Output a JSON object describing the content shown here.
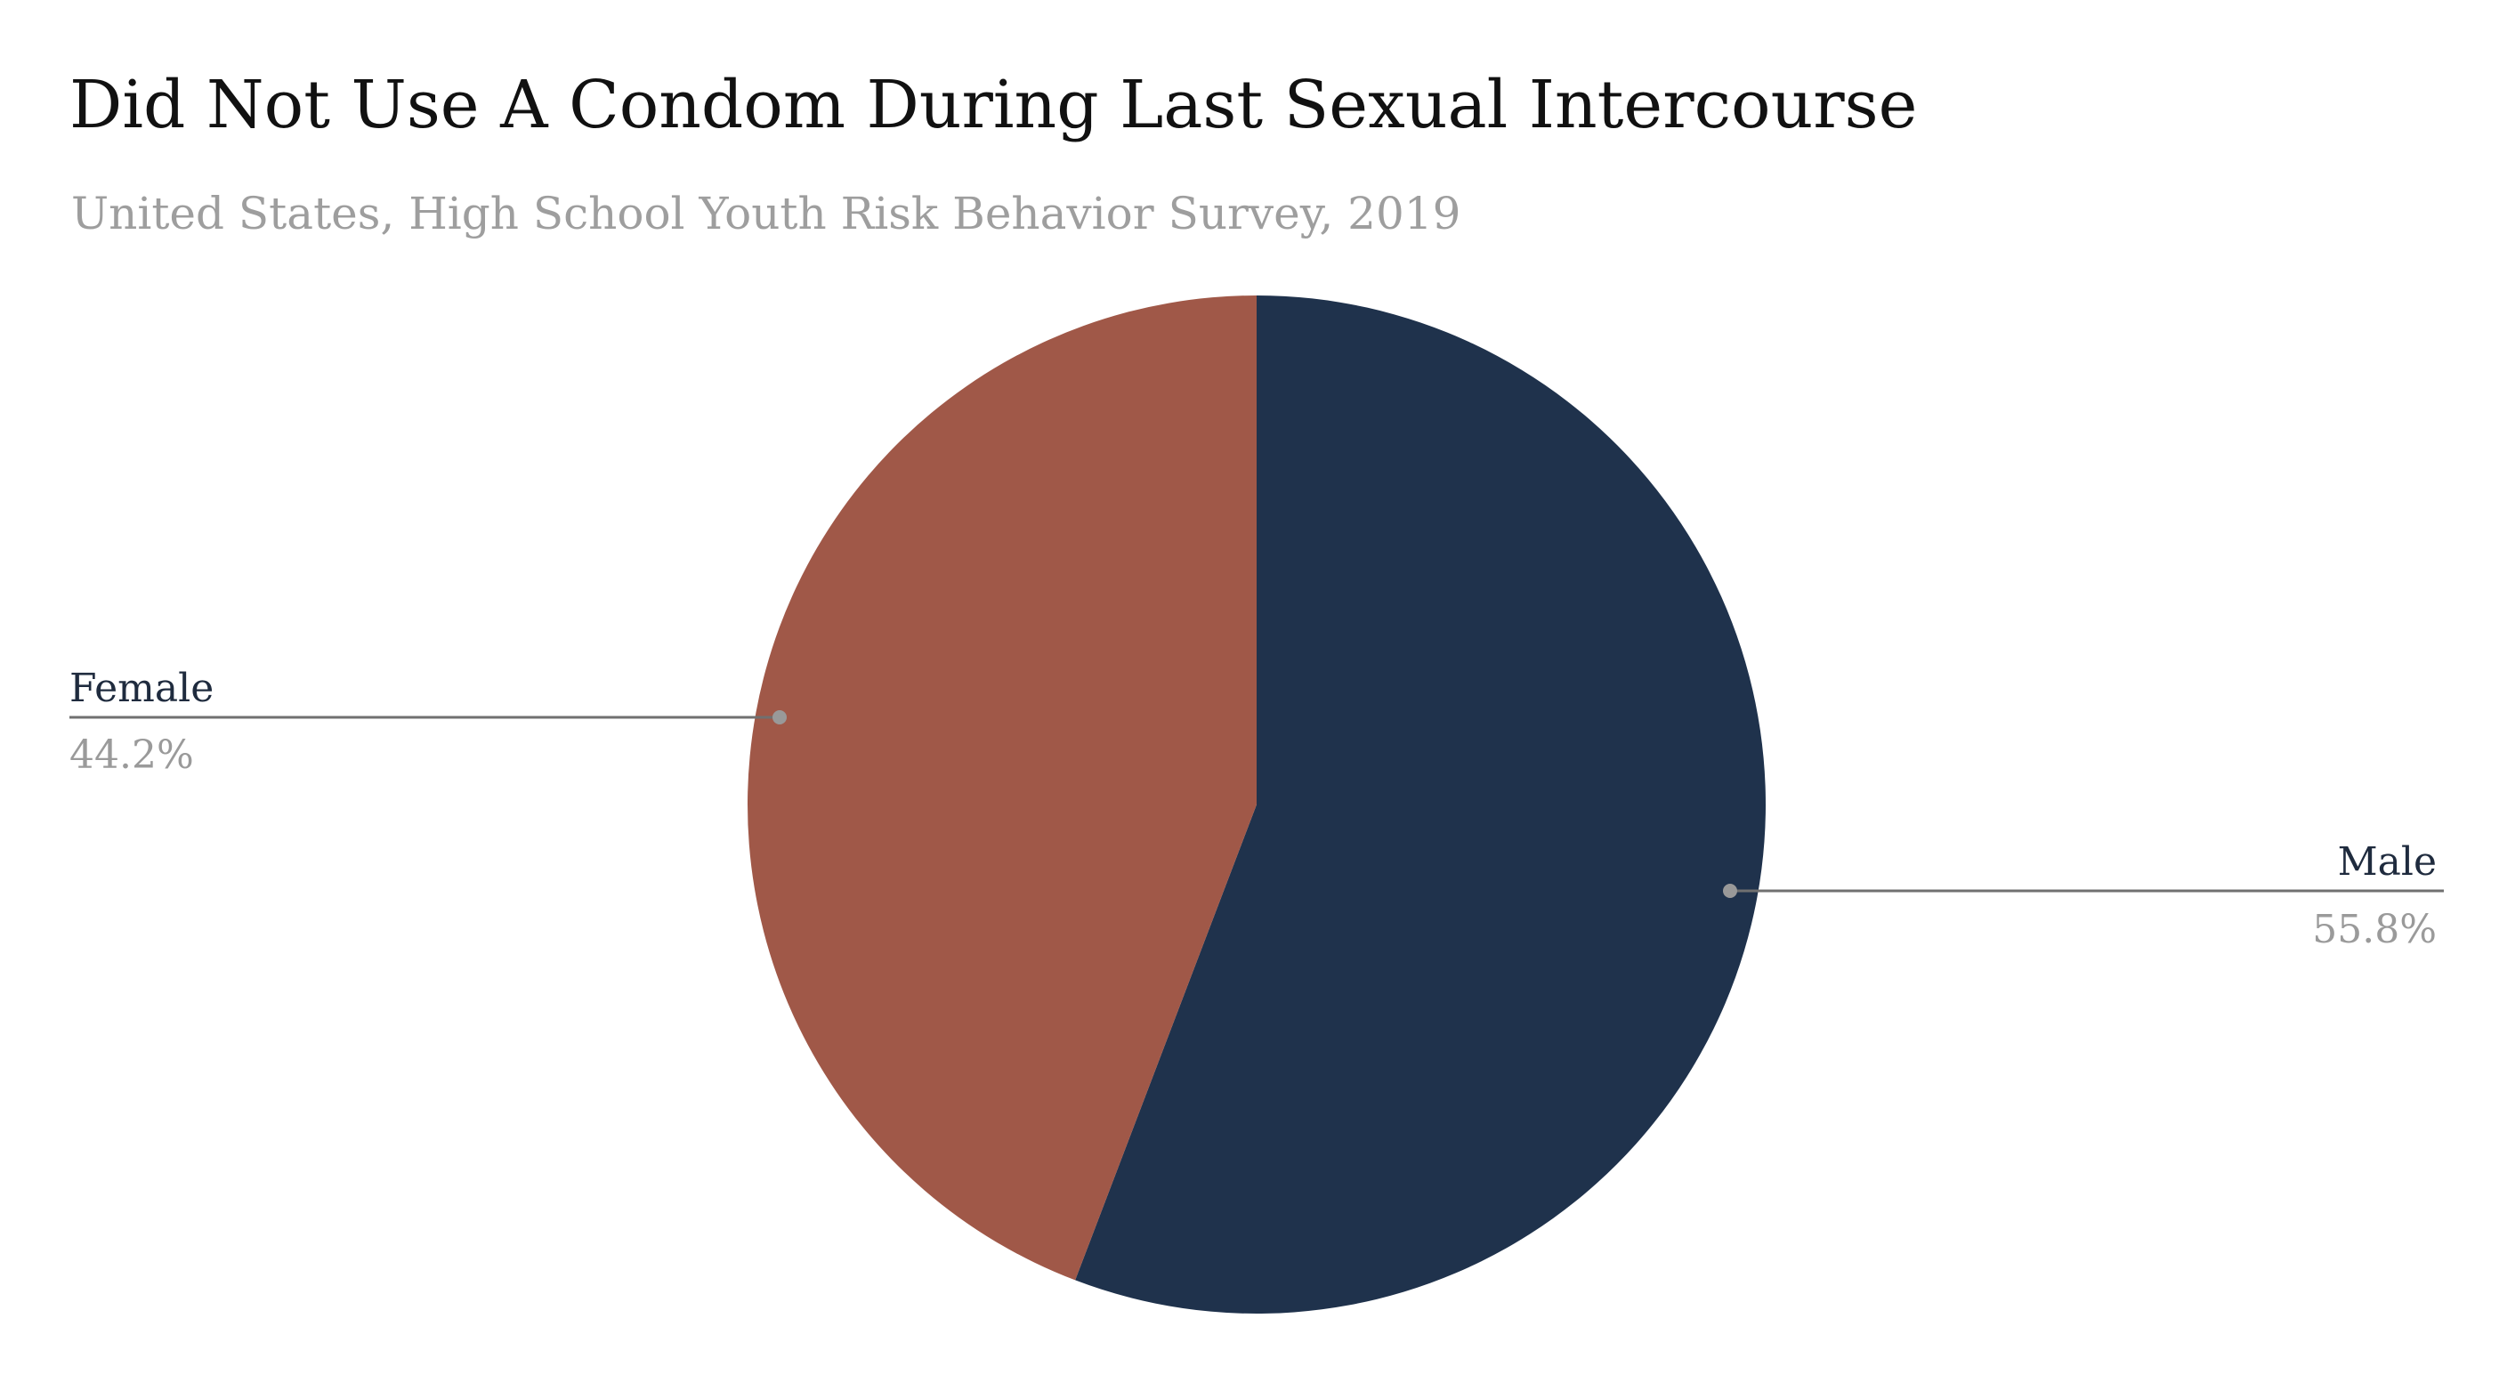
{
  "chart_data": {
    "type": "pie",
    "title": "Did Not Use A Condom During Last Sexual Intercourse",
    "subtitle": "United States, High School Youth Risk Behavior Survey, 2019",
    "slices": [
      {
        "label": "Male",
        "value": 55.8,
        "value_label": "55.8%",
        "color": "#1f324c"
      },
      {
        "label": "Female",
        "value": 44.2,
        "value_label": "44.2%",
        "color": "#a05848"
      }
    ],
    "legend": "none",
    "label_style": "leader-lines"
  },
  "colors": {
    "leader_line": "#707070",
    "leader_dot": "#999999",
    "label_name": "#1f2b3e",
    "label_value": "#9a9a9a"
  }
}
